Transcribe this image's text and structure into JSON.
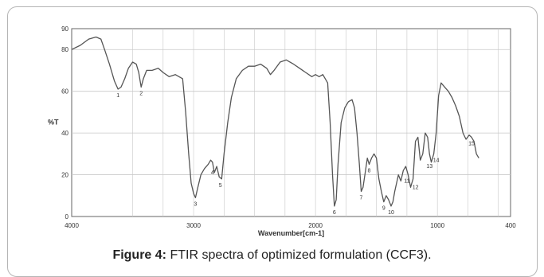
{
  "caption": {
    "label": "Figure 4:",
    "text": "FTIR spectra of optimized formulation (CCF3)."
  },
  "chart_data": {
    "type": "line",
    "title": "",
    "xlabel": "Wavenumber[cm-1]",
    "ylabel": "%T",
    "xlim": [
      4000,
      400
    ],
    "ylim": [
      0,
      90
    ],
    "x_reversed": true,
    "x_ticks": [
      4000,
      3000,
      2000,
      1000,
      400
    ],
    "y_ticks": [
      0,
      20,
      40,
      60,
      80,
      90
    ],
    "grid": true,
    "colors": {
      "line": "#555555",
      "grid": "#c8c8c8",
      "axis": "#666666"
    },
    "series": [
      {
        "values": [
          [
            4000,
            80
          ],
          [
            3930,
            82
          ],
          [
            3860,
            85
          ],
          [
            3800,
            86
          ],
          [
            3760,
            85
          ],
          [
            3730,
            80
          ],
          [
            3690,
            73
          ],
          [
            3650,
            65
          ],
          [
            3620,
            61
          ],
          [
            3595,
            62
          ],
          [
            3565,
            66
          ],
          [
            3535,
            71
          ],
          [
            3500,
            74
          ],
          [
            3470,
            73
          ],
          [
            3450,
            69
          ],
          [
            3430,
            62
          ],
          [
            3412,
            66
          ],
          [
            3385,
            70
          ],
          [
            3340,
            70
          ],
          [
            3290,
            71
          ],
          [
            3250,
            69
          ],
          [
            3200,
            67
          ],
          [
            3150,
            68
          ],
          [
            3090,
            66
          ],
          [
            3065,
            50
          ],
          [
            3040,
            30
          ],
          [
            3020,
            16
          ],
          [
            3000,
            11
          ],
          [
            2985,
            9
          ],
          [
            2965,
            14
          ],
          [
            2940,
            20
          ],
          [
            2910,
            23
          ],
          [
            2880,
            25
          ],
          [
            2860,
            27
          ],
          [
            2845,
            26
          ],
          [
            2830,
            21
          ],
          [
            2810,
            24
          ],
          [
            2790,
            19
          ],
          [
            2770,
            18
          ],
          [
            2750,
            30
          ],
          [
            2720,
            45
          ],
          [
            2690,
            57
          ],
          [
            2650,
            66
          ],
          [
            2600,
            70
          ],
          [
            2550,
            72
          ],
          [
            2500,
            72
          ],
          [
            2450,
            73
          ],
          [
            2400,
            71
          ],
          [
            2370,
            68
          ],
          [
            2340,
            70
          ],
          [
            2290,
            74
          ],
          [
            2240,
            75
          ],
          [
            2180,
            73
          ],
          [
            2130,
            71
          ],
          [
            2080,
            69
          ],
          [
            2030,
            67
          ],
          [
            2000,
            68
          ],
          [
            1970,
            67
          ],
          [
            1940,
            68
          ],
          [
            1900,
            64
          ],
          [
            1880,
            45
          ],
          [
            1860,
            20
          ],
          [
            1845,
            5
          ],
          [
            1830,
            8
          ],
          [
            1815,
            25
          ],
          [
            1790,
            45
          ],
          [
            1760,
            52
          ],
          [
            1730,
            55
          ],
          [
            1700,
            56
          ],
          [
            1680,
            52
          ],
          [
            1660,
            40
          ],
          [
            1640,
            25
          ],
          [
            1625,
            12
          ],
          [
            1610,
            14
          ],
          [
            1590,
            22
          ],
          [
            1575,
            28
          ],
          [
            1560,
            25
          ],
          [
            1540,
            28
          ],
          [
            1520,
            30
          ],
          [
            1500,
            28
          ],
          [
            1480,
            18
          ],
          [
            1460,
            12
          ],
          [
            1440,
            7
          ],
          [
            1420,
            10
          ],
          [
            1400,
            8
          ],
          [
            1380,
            5
          ],
          [
            1365,
            7
          ],
          [
            1350,
            12
          ],
          [
            1320,
            20
          ],
          [
            1300,
            17
          ],
          [
            1280,
            22
          ],
          [
            1260,
            24
          ],
          [
            1240,
            20
          ],
          [
            1220,
            14
          ],
          [
            1200,
            18
          ],
          [
            1180,
            36
          ],
          [
            1160,
            38
          ],
          [
            1140,
            27
          ],
          [
            1120,
            30
          ],
          [
            1100,
            40
          ],
          [
            1080,
            38
          ],
          [
            1065,
            30
          ],
          [
            1050,
            26
          ],
          [
            1030,
            30
          ],
          [
            1010,
            40
          ],
          [
            990,
            58
          ],
          [
            970,
            64
          ],
          [
            940,
            62
          ],
          [
            910,
            60
          ],
          [
            880,
            57
          ],
          [
            850,
            53
          ],
          [
            820,
            48
          ],
          [
            790,
            40
          ],
          [
            765,
            37
          ],
          [
            740,
            39
          ],
          [
            720,
            38
          ],
          [
            700,
            36
          ],
          [
            680,
            30
          ],
          [
            660,
            28
          ]
        ]
      }
    ],
    "peak_labels": [
      {
        "label": "1",
        "x": 3620,
        "y": 61
      },
      {
        "label": "2",
        "x": 3430,
        "y": 62
      },
      {
        "label": "3",
        "x": 2985,
        "y": 9
      },
      {
        "label": "4",
        "x": 2845,
        "y": 24
      },
      {
        "label": "5",
        "x": 2780,
        "y": 18
      },
      {
        "label": "6",
        "x": 1845,
        "y": 5
      },
      {
        "label": "7",
        "x": 1625,
        "y": 12
      },
      {
        "label": "8",
        "x": 1560,
        "y": 25
      },
      {
        "label": "9",
        "x": 1440,
        "y": 7
      },
      {
        "label": "10",
        "x": 1380,
        "y": 5
      },
      {
        "label": "11",
        "x": 1250,
        "y": 20
      },
      {
        "label": "12",
        "x": 1180,
        "y": 17
      },
      {
        "label": "13",
        "x": 1065,
        "y": 27
      },
      {
        "label": "14",
        "x": 1010,
        "y": 30
      },
      {
        "label": "15",
        "x": 720,
        "y": 38
      }
    ]
  }
}
